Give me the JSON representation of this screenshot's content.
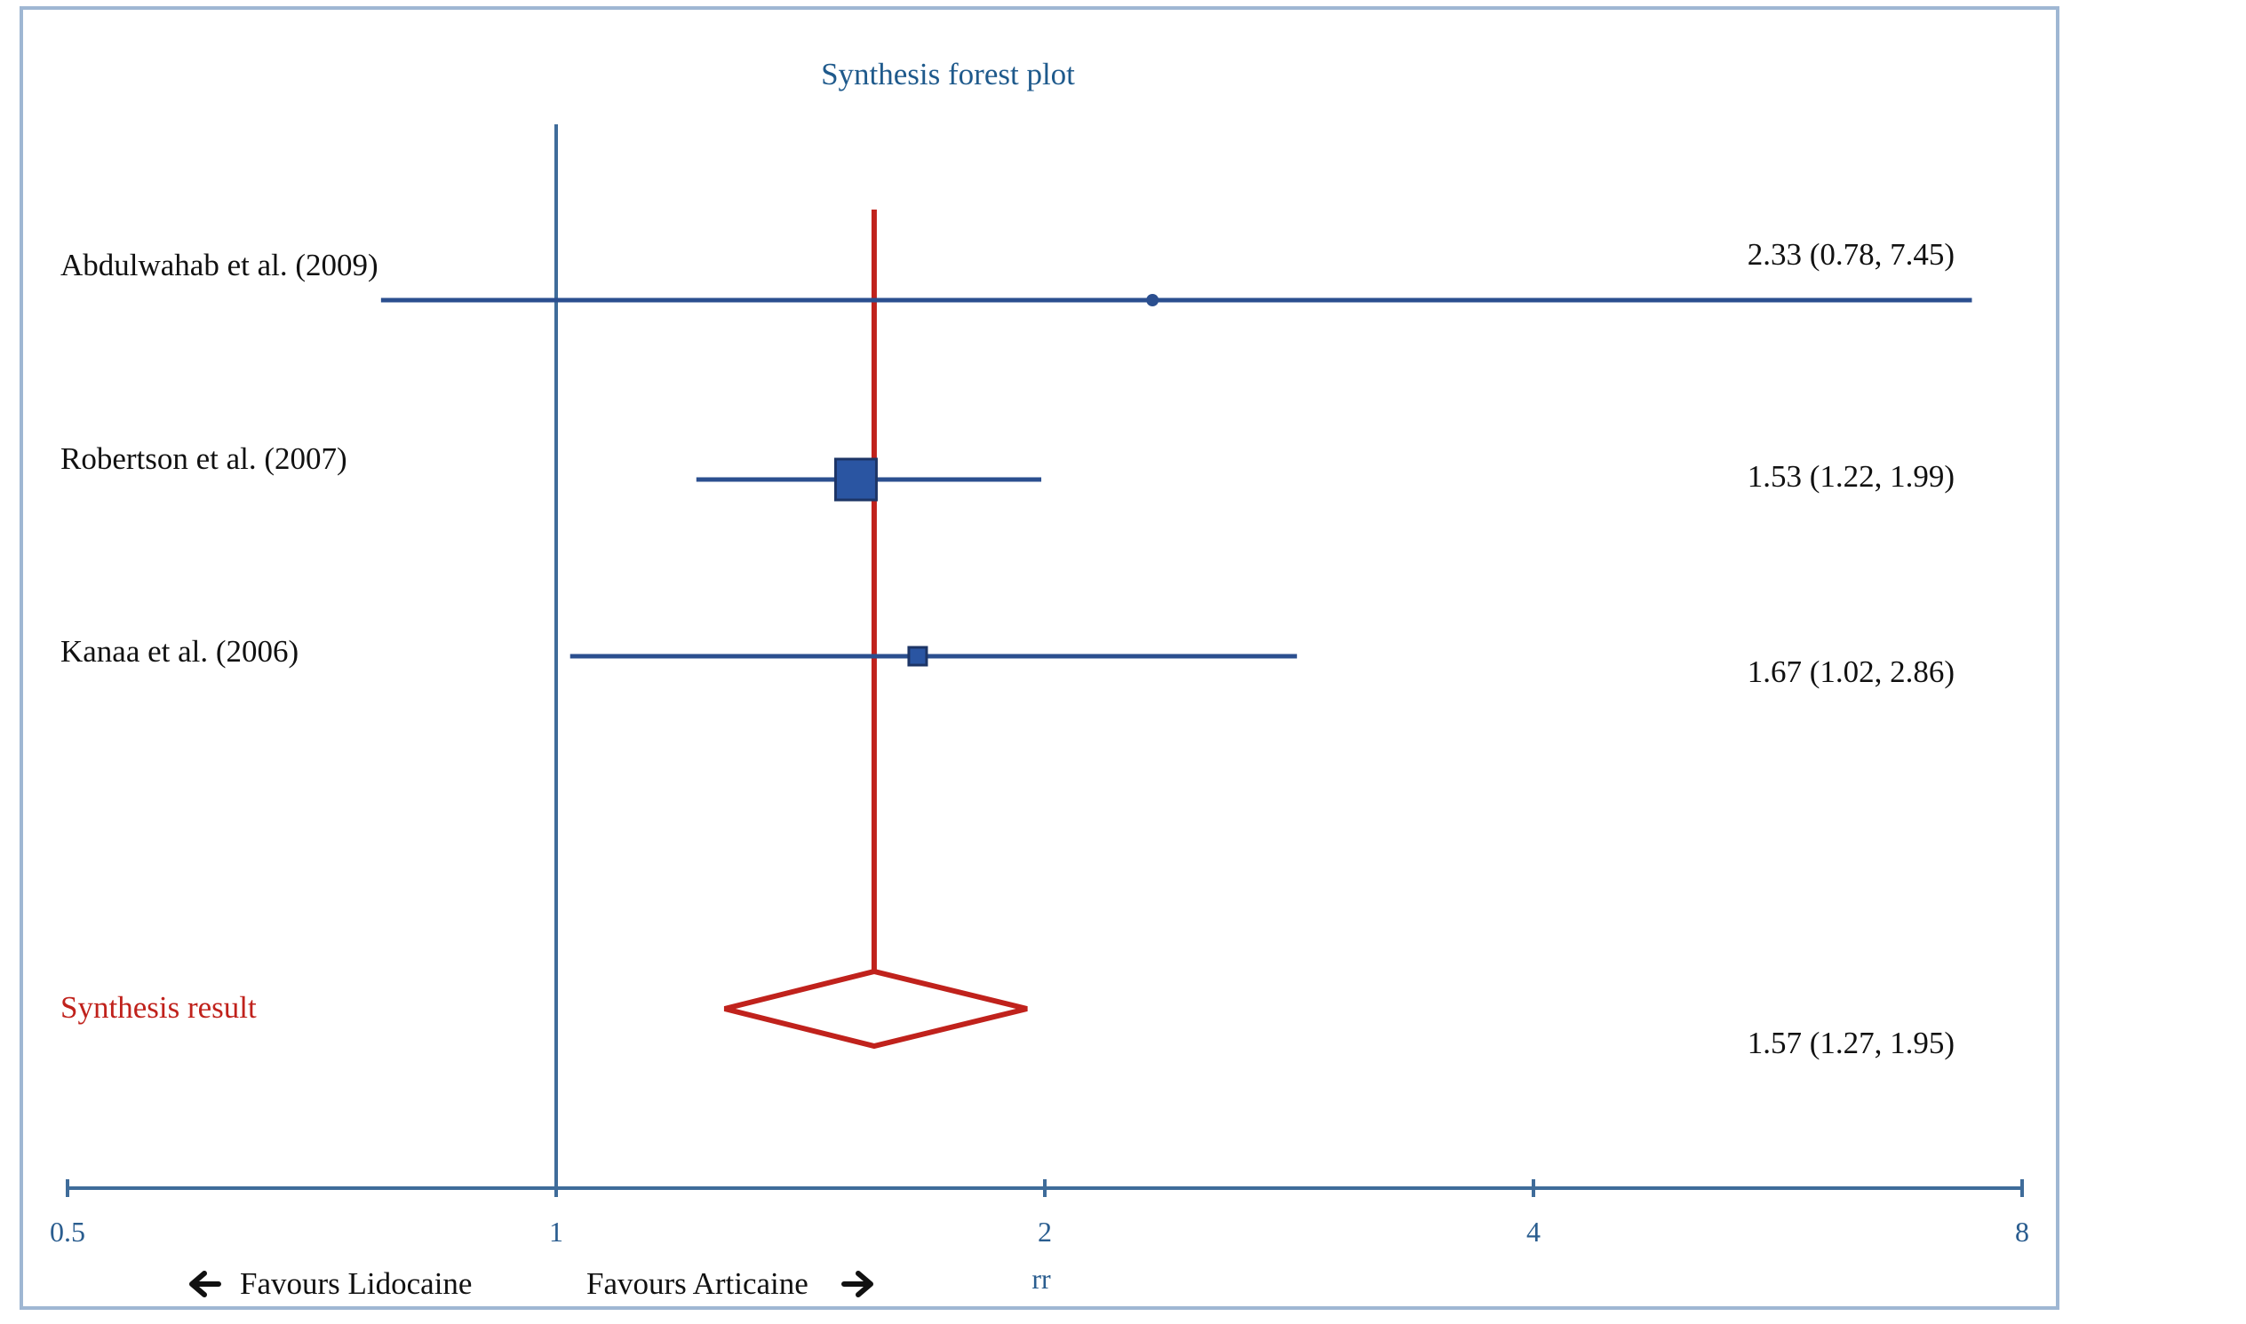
{
  "colors": {
    "frame": "#9fb7d3",
    "study": "#2b4f8f",
    "study_fill": "#2a55a2",
    "summary": "#c0221c",
    "axis": "#3f6c9a",
    "ref_line": "#3f6c9a",
    "title": "#1f5a8c",
    "text": "#111111"
  },
  "chart_data": {
    "type": "forest",
    "title": "Synthesis forest plot",
    "xlabel": "rr",
    "xscale": "log",
    "xlim": [
      0.5,
      8
    ],
    "xticks": [
      {
        "value": 0.5,
        "label": "0.5"
      },
      {
        "value": 1,
        "label": "1"
      },
      {
        "value": 2,
        "label": "2"
      },
      {
        "value": 4,
        "label": "4"
      },
      {
        "value": 8,
        "label": "8"
      }
    ],
    "reference_line": 1,
    "favours_left": "Favours Lidocaine",
    "favours_right": "Favours Articaine",
    "studies": [
      {
        "label": "Abdulwahab et al. (2009)",
        "estimate": 2.33,
        "lower": 0.78,
        "upper": 7.45,
        "text": "2.33 (0.78, 7.45)",
        "marker": "dot"
      },
      {
        "label": "Robertson et al. (2007)",
        "estimate": 1.53,
        "lower": 1.22,
        "upper": 1.99,
        "text": "1.53 (1.22, 1.99)",
        "marker": "square-large"
      },
      {
        "label": "Kanaa et al. (2006)",
        "estimate": 1.67,
        "lower": 1.02,
        "upper": 2.86,
        "text": "1.67 (1.02, 2.86)",
        "marker": "square-small"
      }
    ],
    "summary": {
      "label": "Synthesis result",
      "estimate": 1.57,
      "lower": 1.27,
      "upper": 1.95,
      "text": "1.57 (1.27, 1.95)"
    }
  }
}
